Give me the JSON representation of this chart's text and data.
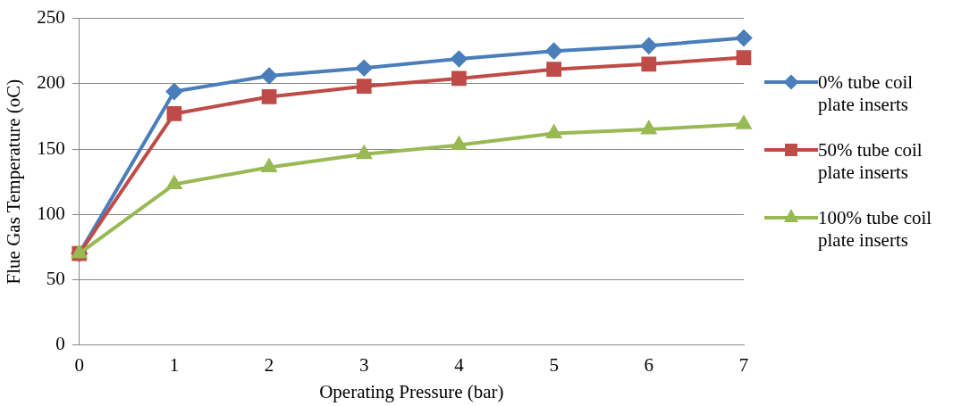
{
  "chart_data": {
    "type": "line",
    "xlabel": "Operating Pressure (bar)",
    "ylabel": "Flue Gas Temperature (oC)",
    "categories": [
      "0",
      "1",
      "2",
      "3",
      "4",
      "5",
      "6",
      "7"
    ],
    "ylim": [
      0,
      250
    ],
    "yticks": [
      0,
      50,
      100,
      150,
      200,
      250
    ],
    "grid": "y",
    "legend": "right",
    "line_style": "solid",
    "series": [
      {
        "name": "0% tube coil plate inserts",
        "color": "#4a7ebb",
        "marker": "diamond",
        "values": [
          70,
          194,
          206,
          212,
          219,
          225,
          229,
          235
        ]
      },
      {
        "name": "50% tube coil plate inserts",
        "color": "#be4b48",
        "marker": "square",
        "values": [
          70,
          177,
          190,
          198,
          204,
          211,
          215,
          220
        ]
      },
      {
        "name": "100% tube coil plate inserts",
        "color": "#98b954",
        "marker": "triangle",
        "values": [
          70,
          123,
          136,
          146,
          153,
          162,
          165,
          169
        ]
      }
    ]
  }
}
